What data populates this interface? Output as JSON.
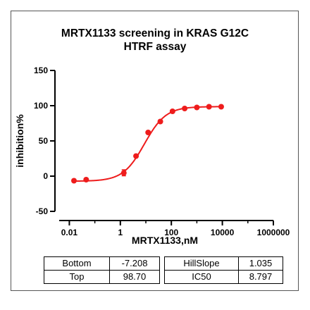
{
  "chart_data": {
    "type": "scatter",
    "title_lines": [
      "MRTX1133 screening in KRAS G12C",
      "HTRF assay"
    ],
    "xlabel": "MRTX1133,nM",
    "ylabel": "inhibition%",
    "xscale": "log",
    "xlim": [
      0.0031,
      1000000
    ],
    "ylim": [
      -50,
      150
    ],
    "x_ticks": [
      0.01,
      1,
      100,
      10000,
      1000000
    ],
    "x_tick_labels": [
      "0.01",
      "1",
      "100",
      "10000",
      "1000000"
    ],
    "y_ticks": [
      -50,
      0,
      50,
      100,
      150
    ],
    "y_tick_labels": [
      "-50",
      "0",
      "50",
      "100",
      "150"
    ],
    "grid": false,
    "color": "#ee1c1c",
    "points": [
      {
        "x": 0.0152,
        "y": -6.5
      },
      {
        "x": 0.0457,
        "y": -5.0
      },
      {
        "x": 1.37,
        "y": 4.5
      },
      {
        "x": 4.12,
        "y": 28.5
      },
      {
        "x": 12.3,
        "y": 62.0
      },
      {
        "x": 37.0,
        "y": 77.5
      },
      {
        "x": 111,
        "y": 92.0
      },
      {
        "x": 333,
        "y": 96.0
      },
      {
        "x": 1000,
        "y": 97.5
      },
      {
        "x": 3000,
        "y": 98.5
      },
      {
        "x": 9000,
        "y": 98.5
      }
    ],
    "error_bars": [
      {
        "x": 1.37,
        "low": 0.5,
        "high": 9.0
      }
    ],
    "fit": {
      "model": "four-parameter logistic",
      "bottom": -7.208,
      "top": 98.7,
      "hillslope": 1.035,
      "ic50": 8.797,
      "x_range": [
        0.0152,
        9000
      ]
    }
  },
  "params_table": {
    "left_rows": [
      {
        "label": "Bottom",
        "value": "-7.208"
      },
      {
        "label": "Top",
        "value": "98.70"
      }
    ],
    "right_rows": [
      {
        "label": "HillSlope",
        "value": "1.035"
      },
      {
        "label": "IC50",
        "value": "8.797"
      }
    ]
  }
}
